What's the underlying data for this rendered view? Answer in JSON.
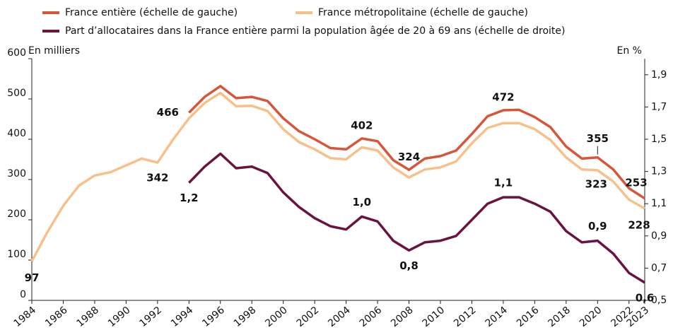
{
  "chart_data": {
    "type": "line",
    "ylabel": "En milliers",
    "y2label": "En %",
    "x": [
      1984,
      1985,
      1986,
      1987,
      1988,
      1989,
      1990,
      1991,
      1992,
      1993,
      1994,
      1995,
      1996,
      1997,
      1998,
      1999,
      2000,
      2001,
      2002,
      2003,
      2004,
      2005,
      2006,
      2007,
      2008,
      2009,
      2010,
      2011,
      2012,
      2013,
      2014,
      2015,
      2016,
      2017,
      2018,
      2019,
      2020,
      2021,
      2022,
      2023
    ],
    "xlim": [
      1984,
      2023
    ],
    "xticks": [
      1984,
      1986,
      1988,
      1990,
      1992,
      1994,
      1996,
      1998,
      2000,
      2002,
      2004,
      2006,
      2008,
      2010,
      2012,
      2014,
      2016,
      2018,
      2020,
      2022,
      2023
    ],
    "ylim": [
      0,
      600
    ],
    "yticks": [
      0,
      100,
      200,
      300,
      400,
      500,
      600
    ],
    "y2lim": [
      0.5,
      2.0
    ],
    "y2ticks": [
      {
        "value": 0.5,
        "label": "0,5"
      },
      {
        "value": 0.7,
        "label": "0,7"
      },
      {
        "value": 0.9,
        "label": "0,9"
      },
      {
        "value": 1.1,
        "label": "1,1"
      },
      {
        "value": 1.3,
        "label": "1,3"
      },
      {
        "value": 1.5,
        "label": "1,5"
      },
      {
        "value": 1.7,
        "label": "1,7"
      },
      {
        "value": 1.9,
        "label": "1,9"
      }
    ],
    "series": [
      {
        "name": "France entière (échelle de gauche)",
        "color": "#d9553a",
        "values": [
          null,
          null,
          null,
          null,
          null,
          null,
          null,
          null,
          null,
          null,
          466,
          505,
          532,
          502,
          505,
          495,
          452,
          420,
          400,
          378,
          375,
          402,
          395,
          348,
          324,
          352,
          358,
          372,
          413,
          457,
          472,
          473,
          455,
          430,
          382,
          352,
          355,
          325,
          278,
          253
        ],
        "value_labels": [
          null,
          null,
          null,
          null,
          null,
          null,
          null,
          null,
          null,
          null,
          "466",
          null,
          null,
          null,
          null,
          null,
          null,
          null,
          null,
          null,
          null,
          "402",
          null,
          null,
          "324",
          null,
          null,
          null,
          null,
          null,
          "472",
          null,
          null,
          null,
          null,
          null,
          "355",
          null,
          null,
          "253"
        ]
      },
      {
        "name": "France métropolitaine (échelle de gauche)",
        "color": "#f7c08a",
        "values": [
          97,
          170,
          235,
          285,
          310,
          318,
          335,
          352,
          342,
          400,
          452,
          490,
          515,
          482,
          483,
          470,
          425,
          393,
          375,
          353,
          350,
          380,
          372,
          330,
          305,
          325,
          330,
          345,
          390,
          428,
          440,
          440,
          425,
          398,
          355,
          325,
          323,
          295,
          250,
          228
        ],
        "value_labels": [
          "97",
          null,
          null,
          null,
          null,
          null,
          null,
          null,
          "342",
          null,
          null,
          null,
          null,
          null,
          null,
          null,
          null,
          null,
          null,
          null,
          null,
          null,
          null,
          null,
          null,
          null,
          null,
          null,
          null,
          null,
          null,
          null,
          null,
          null,
          null,
          null,
          "323",
          null,
          null,
          "228"
        ]
      },
      {
        "name": "Part d’allocataires dans la France entière parmi la population âgée de 20 à 69 ans (échelle de droite)",
        "color": "#6b1340",
        "axis": "y2",
        "values": [
          null,
          null,
          null,
          null,
          null,
          null,
          null,
          null,
          null,
          null,
          1.23,
          1.33,
          1.41,
          1.32,
          1.33,
          1.29,
          1.17,
          1.08,
          1.01,
          0.96,
          0.94,
          1.02,
          0.99,
          0.87,
          0.81,
          0.86,
          0.87,
          0.9,
          1.0,
          1.1,
          1.14,
          1.14,
          1.1,
          1.05,
          0.93,
          0.86,
          0.87,
          0.79,
          0.67,
          0.61
        ],
        "value_labels": [
          null,
          null,
          null,
          null,
          null,
          null,
          null,
          null,
          null,
          null,
          "1,2",
          null,
          null,
          null,
          null,
          null,
          null,
          null,
          null,
          null,
          null,
          "1,0",
          null,
          null,
          "0,8",
          null,
          null,
          null,
          null,
          null,
          "1,1",
          null,
          null,
          null,
          null,
          null,
          "0,9",
          null,
          null,
          "0,6"
        ]
      }
    ]
  }
}
